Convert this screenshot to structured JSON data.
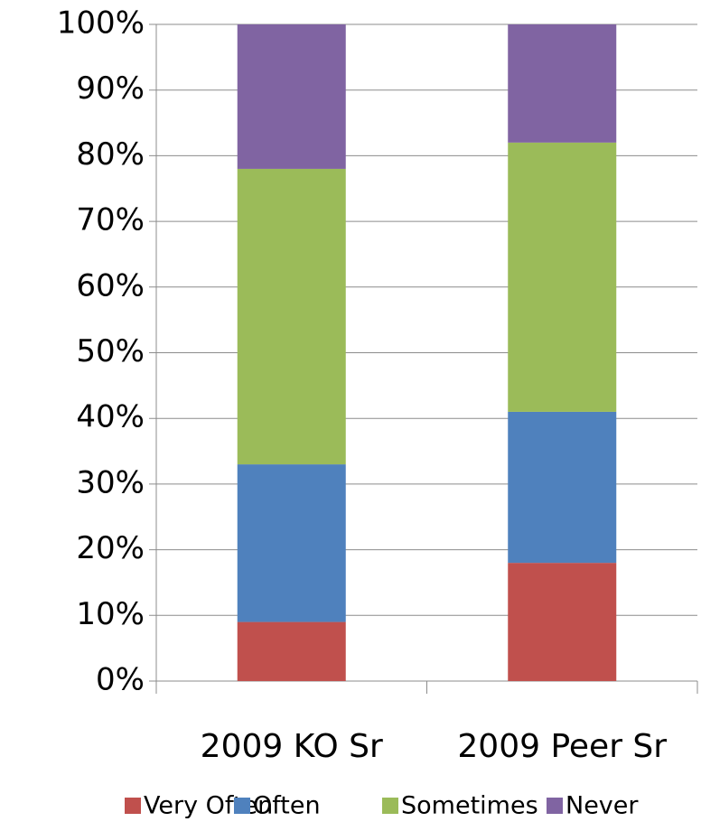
{
  "chart_data": {
    "type": "stacked_bar",
    "categories": [
      "2009 KO Sr",
      "2009 Peer Sr"
    ],
    "series": [
      {
        "name": "Very Often",
        "color": "#c0504d",
        "values": [
          9,
          18
        ]
      },
      {
        "name": "Often",
        "color": "#4f81bd",
        "values": [
          24,
          23
        ]
      },
      {
        "name": "Sometimes",
        "color": "#9bbb59",
        "values": [
          45,
          41
        ]
      },
      {
        "name": "Never",
        "color": "#8064a2",
        "values": [
          22,
          18
        ]
      }
    ],
    "ylim": [
      0,
      100
    ],
    "yticks": [
      {
        "value": 0,
        "label": "0%"
      },
      {
        "value": 10,
        "label": "10%"
      },
      {
        "value": 20,
        "label": "20%"
      },
      {
        "value": 30,
        "label": "30%"
      },
      {
        "value": 40,
        "label": "40%"
      },
      {
        "value": 50,
        "label": "50%"
      },
      {
        "value": 60,
        "label": "60%"
      },
      {
        "value": 70,
        "label": "70%"
      },
      {
        "value": 80,
        "label": "80%"
      },
      {
        "value": 90,
        "label": "90%"
      },
      {
        "value": 100,
        "label": "100%"
      }
    ],
    "grid": true,
    "legend": "bottom"
  }
}
